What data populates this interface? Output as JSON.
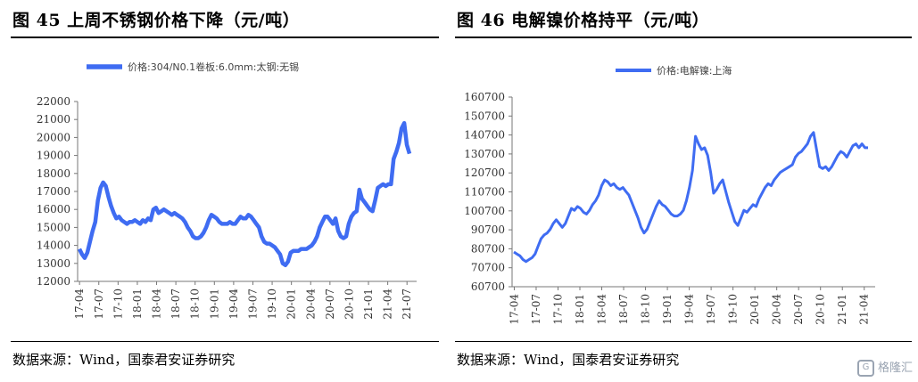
{
  "left": {
    "title": "图 45 上周不锈钢价格下降（元/吨）",
    "source": "数据来源：Wind，国泰君安证券研究"
  },
  "right": {
    "title": "图 46 电解镍价格持平（元/吨）",
    "source": "数据来源：Wind，国泰君安证券研究"
  },
  "watermark": "格隆汇",
  "colors": {
    "line": "#3f6cf2",
    "axis": "#777777",
    "rule": "#000000"
  },
  "chart_data": [
    {
      "type": "line",
      "title": "",
      "legend": "top-center",
      "grid": false,
      "series": [
        {
          "name": "价格:304/N0.1卷板:6.0mm:太钢:无锡",
          "values": [
            13800,
            13500,
            13300,
            13600,
            14200,
            14800,
            15300,
            16500,
            17200,
            17500,
            17300,
            16700,
            16200,
            15800,
            15500,
            15600,
            15400,
            15300,
            15200,
            15300,
            15300,
            15400,
            15300,
            15200,
            15400,
            15300,
            15500,
            15400,
            16000,
            16100,
            15800,
            15900,
            16000,
            15900,
            15800,
            15700,
            15800,
            15700,
            15600,
            15500,
            15300,
            15000,
            14800,
            14500,
            14400,
            14400,
            14500,
            14700,
            15000,
            15400,
            15700,
            15600,
            15500,
            15300,
            15200,
            15200,
            15200,
            15300,
            15200,
            15200,
            15400,
            15600,
            15500,
            15500,
            15700,
            15600,
            15400,
            15200,
            15000,
            14500,
            14200,
            14100,
            14100,
            14000,
            13900,
            13700,
            13500,
            13000,
            12900,
            13100,
            13600,
            13700,
            13700,
            13700,
            13800,
            13800,
            13800,
            13900,
            14000,
            14200,
            14500,
            15000,
            15300,
            15600,
            15600,
            15400,
            15200,
            15500,
            14800,
            14500,
            14400,
            14500,
            15200,
            15600,
            15800,
            15900,
            17100,
            16600,
            16400,
            16200,
            16000,
            15900,
            16500,
            17200,
            17300,
            17400,
            17300,
            17400,
            17400,
            18800,
            19200,
            19700,
            20500,
            20800,
            19600,
            19100
          ]
        }
      ],
      "x_ticks": [
        "17-04",
        "17-07",
        "17-10",
        "18-01",
        "18-04",
        "18-07",
        "18-10",
        "19-01",
        "19-04",
        "19-07",
        "19-10",
        "20-01",
        "20-04",
        "20-07",
        "20-10",
        "21-01",
        "21-04",
        "21-07"
      ],
      "y_ticks": [
        12000,
        13000,
        14000,
        15000,
        16000,
        17000,
        18000,
        19000,
        20000,
        21000,
        22000
      ],
      "ylim": [
        12000,
        22000
      ]
    },
    {
      "type": "line",
      "title": "",
      "legend": "top-center",
      "grid": false,
      "series": [
        {
          "name": "价格:电解镍:上海",
          "values": [
            79000,
            78000,
            77000,
            75000,
            74000,
            75000,
            76000,
            78000,
            82000,
            86000,
            88000,
            89000,
            91000,
            94000,
            96000,
            94000,
            92000,
            94000,
            98000,
            102000,
            101000,
            103000,
            102000,
            100000,
            99000,
            101000,
            104000,
            106000,
            109000,
            114000,
            117000,
            116000,
            114000,
            115000,
            113000,
            112000,
            113000,
            111000,
            109000,
            105000,
            101000,
            97000,
            92000,
            89000,
            91000,
            95000,
            99000,
            103000,
            106000,
            104000,
            103000,
            101000,
            99000,
            98000,
            98000,
            99000,
            101000,
            106000,
            113000,
            122000,
            140000,
            136000,
            133000,
            134000,
            130000,
            121000,
            110000,
            112000,
            115000,
            117000,
            111000,
            105000,
            100000,
            95000,
            93000,
            97000,
            101000,
            100000,
            102000,
            104000,
            103000,
            107000,
            110000,
            113000,
            115000,
            114000,
            117000,
            119000,
            121000,
            122000,
            123000,
            124000,
            125000,
            129000,
            131000,
            132000,
            134000,
            136000,
            140000,
            142000,
            133000,
            124000,
            123000,
            124000,
            122000,
            124000,
            127000,
            130000,
            132000,
            131000,
            129000,
            132000,
            135000,
            136000,
            134000,
            136000,
            134000,
            134000
          ]
        }
      ],
      "x_ticks": [
        "17-04",
        "17-07",
        "17-10",
        "18-01",
        "18-04",
        "18-07",
        "18-10",
        "19-01",
        "19-04",
        "19-07",
        "19-10",
        "20-01",
        "20-04",
        "20-07",
        "20-10",
        "21-01",
        "21-04"
      ],
      "y_ticks": [
        60700,
        70700,
        80700,
        90700,
        100700,
        110700,
        120700,
        130700,
        140700,
        150700,
        160700
      ],
      "ylim": [
        60700,
        160700
      ]
    }
  ]
}
